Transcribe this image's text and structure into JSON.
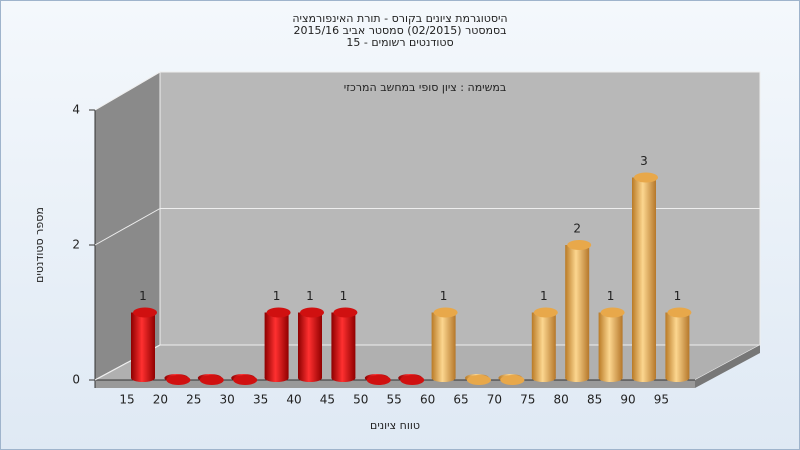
{
  "chart_data": {
    "type": "bar",
    "title": "היסטוגרמת ציונים בקורס - תורת האינפורמציה",
    "subtitle": "בסמסטר  (02/2015)  סמסטר אביב 2015/16",
    "subtitle2": "סטודנטים רשומים - 15",
    "annotation": "במשימה : ציון סופי במחשב המרכזי",
    "x_label": "טווח ציונים",
    "y_label": "מספר סטודנטים",
    "categories": [
      "15",
      "20",
      "25",
      "30",
      "35",
      "40",
      "45",
      "50",
      "55",
      "60",
      "65",
      "70",
      "75",
      "80",
      "85",
      "90",
      "95"
    ],
    "values": [
      1,
      0,
      0,
      0,
      1,
      1,
      1,
      0,
      0,
      1,
      0,
      0,
      1,
      2,
      1,
      3,
      1
    ],
    "colors": [
      "red",
      "red",
      "red",
      "red",
      "red",
      "red",
      "red",
      "red",
      "red",
      "orange",
      "orange",
      "orange",
      "orange",
      "orange",
      "orange",
      "orange",
      "orange"
    ],
    "ylim": [
      0,
      4
    ],
    "yticks": [
      0,
      2,
      4
    ],
    "grid": true
  }
}
